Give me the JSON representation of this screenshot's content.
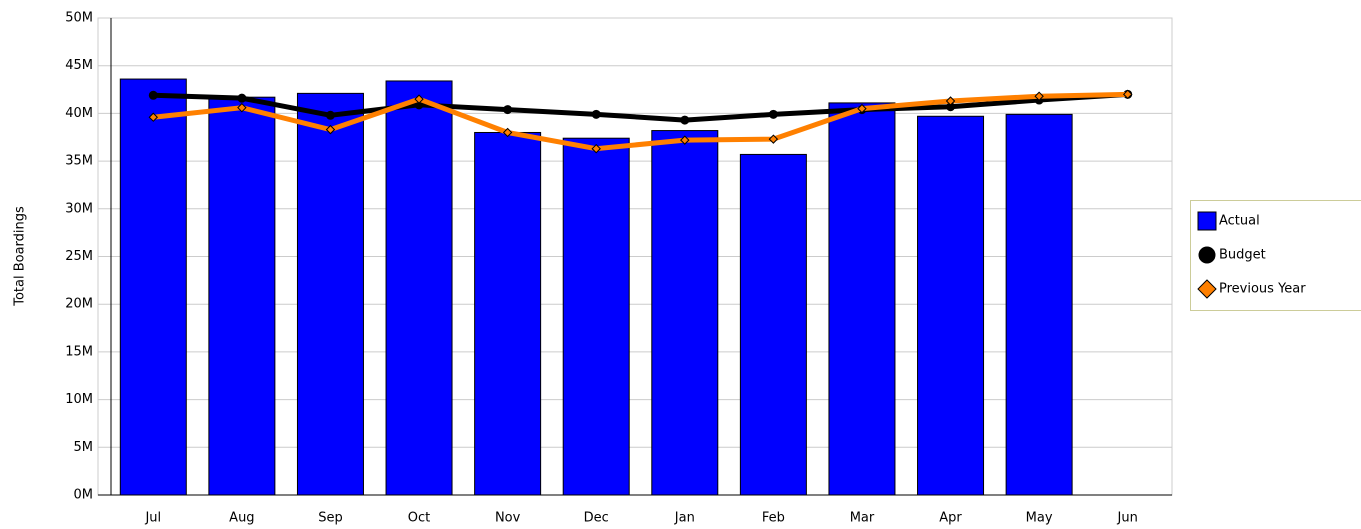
{
  "chart_data": {
    "type": "bar",
    "y_label": "Total Boardings",
    "categories": [
      "Jul",
      "Aug",
      "Sep",
      "Oct",
      "Nov",
      "Dec",
      "Jan",
      "Feb",
      "Mar",
      "Apr",
      "May",
      "Jun"
    ],
    "series": [
      {
        "name": "Actual",
        "type": "bar",
        "color": "#0000ff",
        "values": [
          43.6,
          41.7,
          42.1,
          43.4,
          38.0,
          37.4,
          38.2,
          35.7,
          41.1,
          39.7,
          39.9,
          null
        ]
      },
      {
        "name": "Budget",
        "type": "line",
        "color": "#000000",
        "marker": "circle",
        "values": [
          41.9,
          41.6,
          39.8,
          40.9,
          40.4,
          39.9,
          39.3,
          39.9,
          40.4,
          40.7,
          41.4,
          42.0
        ]
      },
      {
        "name": "Previous Year",
        "type": "line",
        "color": "#ff8000",
        "marker": "diamond",
        "values": [
          39.6,
          40.6,
          38.3,
          41.5,
          38.0,
          36.3,
          37.2,
          37.3,
          40.5,
          41.3,
          41.8,
          42.0
        ]
      }
    ],
    "ylim": [
      0,
      50
    ],
    "yticks": [
      {
        "value": 0,
        "label": "0M"
      },
      {
        "value": 5,
        "label": "5M"
      },
      {
        "value": 10,
        "label": "10M"
      },
      {
        "value": 15,
        "label": "15M"
      },
      {
        "value": 20,
        "label": "20M"
      },
      {
        "value": 25,
        "label": "25M"
      },
      {
        "value": 30,
        "label": "30M"
      },
      {
        "value": 35,
        "label": "35M"
      },
      {
        "value": 40,
        "label": "40M"
      },
      {
        "value": 45,
        "label": "45M"
      },
      {
        "value": 50,
        "label": "50M"
      }
    ],
    "grid": true,
    "legend": "right"
  }
}
